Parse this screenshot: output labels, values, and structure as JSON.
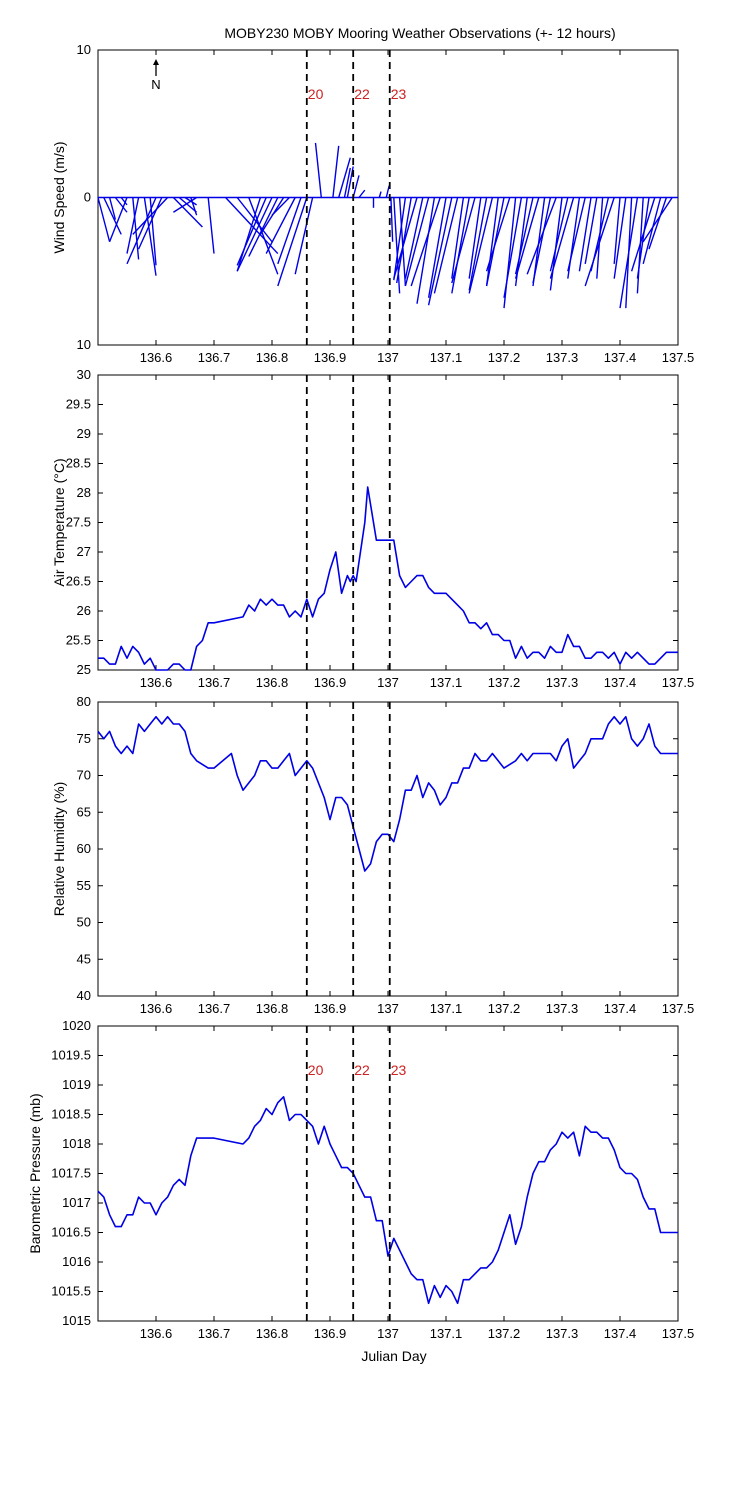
{
  "title": "MOBY230 MOBY Mooring Weather Observations (+- 12 hours)",
  "colors": {
    "series": "#0000e6",
    "marker_line": "#000000",
    "marker_text": "#cc2222",
    "axes": "#000000"
  },
  "x_axis": {
    "label": "Julian Day",
    "range": [
      136.5,
      137.5
    ],
    "ticks": [
      136.6,
      136.7,
      136.8,
      136.9,
      137.0,
      137.1,
      137.2,
      137.3,
      137.4,
      137.5
    ],
    "tick_labels": [
      "136.6",
      "136.7",
      "136.8",
      "136.9",
      "137",
      "137.1",
      "137.2",
      "137.3",
      "137.4",
      "137.5"
    ]
  },
  "markers": [
    {
      "x": 136.86,
      "label": "20"
    },
    {
      "x": 136.94,
      "label": "22"
    },
    {
      "x": 137.003,
      "label": "23"
    }
  ],
  "north_indicator": "N",
  "chart_data": [
    {
      "type": "quiver",
      "ylabel": "Wind Speed (m/s)",
      "ylim": [
        -10,
        10
      ],
      "yticks": [
        10,
        0,
        10
      ],
      "show_marker_labels": true,
      "series": [
        {
          "t": [
            136.5,
            136.51,
            136.52,
            136.53,
            136.54,
            136.55,
            136.56,
            136.57,
            136.58,
            136.59,
            136.6,
            136.61,
            136.62,
            136.63,
            136.64,
            136.65,
            136.66,
            136.67,
            136.69,
            136.72,
            136.74,
            136.76,
            136.78,
            136.79,
            136.8,
            136.81,
            136.82,
            136.83,
            136.84,
            136.85,
            136.86,
            136.87,
            136.885,
            136.905,
            136.915,
            136.925,
            136.93,
            136.94,
            136.95,
            136.975,
            136.985,
            136.997,
            137.005,
            137.01,
            137.02,
            137.03,
            137.04,
            137.05,
            137.06,
            137.07,
            137.08,
            137.09,
            137.1,
            137.11,
            137.12,
            137.13,
            137.14,
            137.15,
            137.16,
            137.17,
            137.18,
            137.19,
            137.2,
            137.21,
            137.22,
            137.23,
            137.24,
            137.25,
            137.26,
            137.27,
            137.28,
            137.29,
            137.3,
            137.31,
            137.32,
            137.33,
            137.34,
            137.35,
            137.36,
            137.37,
            137.38,
            137.39,
            137.4,
            137.41,
            137.42,
            137.43,
            137.44,
            137.45,
            137.46,
            137.47,
            137.48,
            137.49
          ],
          "u": [
            0.02,
            0.03,
            0.01,
            0.02,
            0.01,
            -0.03,
            0.01,
            -0.02,
            0.02,
            0.01,
            -0.05,
            -0.04,
            -0.06,
            0.05,
            0.03,
            0.02,
            0.01,
            -0.04,
            0.01,
            0.09,
            0.06,
            0.05,
            -0.04,
            -0.05,
            -0.06,
            -0.05,
            -0.04,
            -0.03,
            -0.05,
            -0.04,
            -0.05,
            -0.03,
            -0.01,
            0.01,
            0.02,
            0.01,
            0.01,
            0.01,
            0.01,
            0.0,
            0.003,
            0.005,
            0.003,
            0.01,
            0.01,
            -0.02,
            -0.025,
            -0.04,
            -0.03,
            -0.04,
            -0.03,
            -0.05,
            -0.03,
            -0.04,
            -0.04,
            -0.02,
            -0.03,
            -0.04,
            -0.02,
            -0.03,
            -0.04,
            -0.02,
            -0.03,
            -0.04,
            -0.02,
            -0.03,
            -0.02,
            -0.03,
            -0.04,
            -0.02,
            -0.03,
            -0.05,
            -0.02,
            -0.03,
            -0.04,
            -0.02,
            -0.03,
            -0.02,
            -0.02,
            -0.01,
            -0.03,
            -0.05,
            -0.01,
            -0.02,
            -0.01,
            -0.03,
            -0.01,
            -0.02,
            -0.04,
            -0.03,
            -0.03,
            -0.05
          ],
          "v": [
            -3.0,
            -2.5,
            -1.5,
            -1.0,
            -0.5,
            -3.0,
            -4.2,
            -3.8,
            -5.3,
            -4.6,
            -4.5,
            -3.5,
            -2.5,
            -2.0,
            -1.0,
            -0.5,
            -1.2,
            -1.0,
            -3.8,
            -3.8,
            -3.0,
            -5.2,
            -5.0,
            -4.6,
            -5.0,
            -4.0,
            -2.5,
            -1.2,
            -3.8,
            -4.5,
            -6.0,
            -5.2,
            3.7,
            3.5,
            2.7,
            2.0,
            2.1,
            1.5,
            0.5,
            -0.7,
            0.4,
            0.8,
            -3.0,
            -6.5,
            -6.0,
            -5.6,
            -5.8,
            -5.5,
            -5.5,
            -6.0,
            -7.2,
            -6.0,
            -6.8,
            -7.3,
            -6.5,
            -5.5,
            -6.5,
            -5.8,
            -5.5,
            -6.3,
            -6.5,
            -6.0,
            -6.0,
            -5.0,
            -7.5,
            -6.8,
            -6.0,
            -5.2,
            -5.5,
            -6.0,
            -5.8,
            -5.2,
            -6.3,
            -5.0,
            -5.5,
            -5.5,
            -5.0,
            -5.0,
            -4.5,
            -5.5,
            -5.0,
            -6.0,
            -4.5,
            -5.5,
            -7.5,
            -7.5,
            -6.5,
            -5.5,
            -5.0,
            -4.5,
            -3.5,
            -3.0
          ]
        }
      ]
    },
    {
      "type": "line",
      "ylabel": "Air Temperature (°C)",
      "ylim": [
        25,
        30
      ],
      "yticks": [
        25,
        25.5,
        26,
        26.5,
        27,
        27.5,
        28,
        28.5,
        29,
        29.5,
        30
      ],
      "series": [
        {
          "name": "",
          "x": [
            136.5,
            136.51,
            136.52,
            136.53,
            136.54,
            136.55,
            136.56,
            136.57,
            136.58,
            136.59,
            136.6,
            136.61,
            136.62,
            136.63,
            136.64,
            136.65,
            136.66,
            136.67,
            136.68,
            136.69,
            136.7,
            136.75,
            136.76,
            136.77,
            136.78,
            136.79,
            136.8,
            136.81,
            136.82,
            136.83,
            136.84,
            136.85,
            136.86,
            136.87,
            136.88,
            136.89,
            136.9,
            136.91,
            136.92,
            136.93,
            136.935,
            136.94,
            136.945,
            136.96,
            136.965,
            136.97,
            136.98,
            136.99,
            137.0,
            137.01,
            137.02,
            137.03,
            137.04,
            137.05,
            137.06,
            137.07,
            137.08,
            137.1,
            137.12,
            137.13,
            137.14,
            137.15,
            137.16,
            137.17,
            137.18,
            137.19,
            137.2,
            137.21,
            137.22,
            137.23,
            137.24,
            137.25,
            137.26,
            137.27,
            137.28,
            137.29,
            137.3,
            137.31,
            137.32,
            137.33,
            137.34,
            137.35,
            137.36,
            137.37,
            137.38,
            137.39,
            137.4,
            137.41,
            137.42,
            137.43,
            137.44,
            137.45,
            137.46,
            137.47,
            137.48,
            137.49,
            137.5
          ],
          "y": [
            25.2,
            25.2,
            25.1,
            25.1,
            25.4,
            25.2,
            25.4,
            25.3,
            25.1,
            25.2,
            25.0,
            25.0,
            25.0,
            25.1,
            25.1,
            25.0,
            25.0,
            25.4,
            25.5,
            25.8,
            25.8,
            25.9,
            26.1,
            26.0,
            26.2,
            26.1,
            26.2,
            26.1,
            26.1,
            25.9,
            26.0,
            25.9,
            26.2,
            25.9,
            26.2,
            26.3,
            26.7,
            27.0,
            26.3,
            26.6,
            26.5,
            26.6,
            26.5,
            27.5,
            28.1,
            27.8,
            27.2,
            27.2,
            27.2,
            27.2,
            26.6,
            26.4,
            26.5,
            26.6,
            26.6,
            26.4,
            26.3,
            26.3,
            26.1,
            26.0,
            25.8,
            25.8,
            25.7,
            25.8,
            25.6,
            25.6,
            25.5,
            25.5,
            25.2,
            25.4,
            25.2,
            25.3,
            25.3,
            25.2,
            25.4,
            25.3,
            25.3,
            25.6,
            25.4,
            25.4,
            25.2,
            25.2,
            25.3,
            25.3,
            25.2,
            25.3,
            25.1,
            25.3,
            25.2,
            25.3,
            25.2,
            25.1,
            25.1,
            25.2,
            25.3,
            25.3,
            25.3
          ]
        }
      ]
    },
    {
      "type": "line",
      "ylabel": "Relative Humidity (%)",
      "ylim": [
        40,
        80
      ],
      "yticks": [
        40,
        45,
        50,
        55,
        60,
        65,
        70,
        75,
        80
      ],
      "series": [
        {
          "name": "",
          "x": [
            136.5,
            136.51,
            136.52,
            136.53,
            136.54,
            136.55,
            136.56,
            136.57,
            136.58,
            136.59,
            136.6,
            136.61,
            136.62,
            136.63,
            136.64,
            136.65,
            136.66,
            136.67,
            136.69,
            136.7,
            136.73,
            136.74,
            136.75,
            136.77,
            136.78,
            136.79,
            136.8,
            136.81,
            136.82,
            136.83,
            136.84,
            136.85,
            136.86,
            136.87,
            136.89,
            136.9,
            136.91,
            136.92,
            136.93,
            136.94,
            136.95,
            136.96,
            136.97,
            136.98,
            136.99,
            137.0,
            137.01,
            137.02,
            137.03,
            137.04,
            137.05,
            137.06,
            137.07,
            137.08,
            137.09,
            137.1,
            137.11,
            137.12,
            137.13,
            137.14,
            137.15,
            137.16,
            137.17,
            137.18,
            137.19,
            137.2,
            137.22,
            137.23,
            137.24,
            137.25,
            137.26,
            137.27,
            137.28,
            137.29,
            137.3,
            137.31,
            137.32,
            137.33,
            137.34,
            137.35,
            137.36,
            137.37,
            137.38,
            137.39,
            137.4,
            137.41,
            137.42,
            137.43,
            137.44,
            137.45,
            137.46,
            137.47,
            137.48,
            137.49,
            137.5
          ],
          "y": [
            76,
            75,
            76,
            74,
            73,
            74,
            73,
            77,
            76,
            77,
            78,
            77,
            78,
            77,
            77,
            76,
            73,
            72,
            71,
            71,
            73,
            70,
            68,
            70,
            72,
            72,
            71,
            71,
            72,
            73,
            70,
            71,
            72,
            71,
            67,
            64,
            67,
            67,
            66,
            63,
            60,
            57,
            58,
            61,
            62,
            62,
            61,
            64,
            68,
            68,
            70,
            67,
            69,
            68,
            66,
            67,
            69,
            69,
            71,
            71,
            73,
            72,
            72,
            73,
            72,
            71,
            72,
            73,
            72,
            73,
            73,
            73,
            73,
            72,
            74,
            75,
            71,
            72,
            73,
            75,
            75,
            75,
            77,
            78,
            77,
            78,
            75,
            74,
            75,
            77,
            74,
            73,
            73,
            73,
            73
          ]
        }
      ]
    },
    {
      "type": "line",
      "ylabel": "Barometric Pressure (mb)",
      "ylim": [
        1015,
        1020
      ],
      "yticks": [
        1015,
        1015.5,
        1016,
        1016.5,
        1017,
        1017.5,
        1018,
        1018.5,
        1019,
        1019.5,
        1020
      ],
      "show_marker_labels": true,
      "series": [
        {
          "name": "",
          "x": [
            136.5,
            136.51,
            136.52,
            136.53,
            136.54,
            136.55,
            136.56,
            136.57,
            136.58,
            136.59,
            136.6,
            136.61,
            136.62,
            136.63,
            136.64,
            136.65,
            136.66,
            136.67,
            136.68,
            136.69,
            136.7,
            136.75,
            136.76,
            136.77,
            136.78,
            136.79,
            136.8,
            136.81,
            136.82,
            136.83,
            136.84,
            136.85,
            136.86,
            136.87,
            136.88,
            136.89,
            136.9,
            136.91,
            136.92,
            136.93,
            136.94,
            136.95,
            136.96,
            136.97,
            136.98,
            136.99,
            137.0,
            137.01,
            137.02,
            137.03,
            137.04,
            137.05,
            137.06,
            137.07,
            137.08,
            137.09,
            137.1,
            137.11,
            137.12,
            137.13,
            137.14,
            137.15,
            137.16,
            137.17,
            137.18,
            137.19,
            137.2,
            137.21,
            137.22,
            137.23,
            137.24,
            137.25,
            137.26,
            137.27,
            137.28,
            137.29,
            137.3,
            137.31,
            137.32,
            137.33,
            137.34,
            137.35,
            137.36,
            137.37,
            137.38,
            137.39,
            137.4,
            137.41,
            137.42,
            137.43,
            137.44,
            137.45,
            137.46,
            137.47,
            137.48,
            137.49,
            137.5
          ],
          "y": [
            1017.2,
            1017.1,
            1016.8,
            1016.6,
            1016.6,
            1016.8,
            1016.8,
            1017.1,
            1017.0,
            1017.0,
            1016.8,
            1017.0,
            1017.1,
            1017.3,
            1017.4,
            1017.3,
            1017.8,
            1018.1,
            1018.1,
            1018.1,
            1018.1,
            1018.0,
            1018.1,
            1018.3,
            1018.4,
            1018.6,
            1018.5,
            1018.7,
            1018.8,
            1018.4,
            1018.5,
            1018.5,
            1018.4,
            1018.3,
            1018.0,
            1018.3,
            1018.0,
            1017.8,
            1017.6,
            1017.6,
            1017.5,
            1017.3,
            1017.1,
            1017.1,
            1016.7,
            1016.7,
            1016.1,
            1016.4,
            1016.2,
            1016.0,
            1015.8,
            1015.7,
            1015.7,
            1015.3,
            1015.6,
            1015.4,
            1015.6,
            1015.5,
            1015.3,
            1015.7,
            1015.7,
            1015.8,
            1015.9,
            1015.9,
            1016.0,
            1016.2,
            1016.5,
            1016.8,
            1016.3,
            1016.6,
            1017.1,
            1017.5,
            1017.7,
            1017.7,
            1017.9,
            1018.0,
            1018.2,
            1018.1,
            1018.2,
            1017.8,
            1018.3,
            1018.2,
            1018.2,
            1018.1,
            1018.1,
            1017.9,
            1017.6,
            1017.5,
            1017.5,
            1017.4,
            1017.1,
            1016.9,
            1016.9,
            1016.5,
            1016.5,
            1016.5,
            1016.5
          ]
        }
      ]
    }
  ]
}
